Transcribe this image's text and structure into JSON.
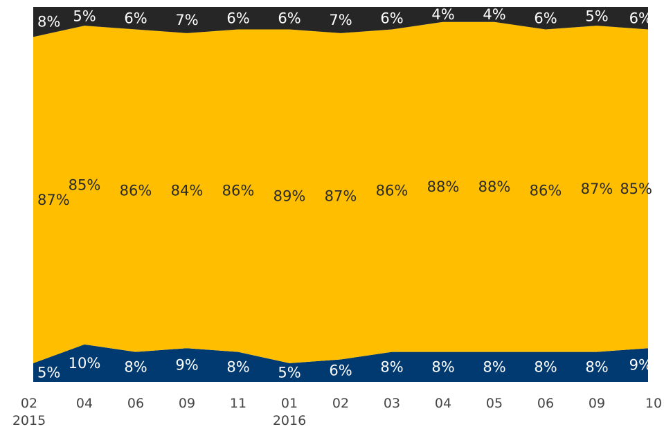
{
  "chart_data": {
    "type": "area",
    "stacked": "percent",
    "x_ticks": [
      "02",
      "04",
      "06",
      "09",
      "11",
      "01",
      "02",
      "03",
      "04",
      "05",
      "06",
      "09",
      "10"
    ],
    "year_labels": [
      {
        "index": 0,
        "label": "2015"
      },
      {
        "index": 5,
        "label": "2016"
      }
    ],
    "series": [
      {
        "color": "#003a70",
        "values": [
          5,
          10,
          8,
          9,
          8,
          5,
          6,
          8,
          8,
          8,
          8,
          8,
          9
        ],
        "labels": [
          "5%",
          "10%",
          "8%",
          "9%",
          "8%",
          "5%",
          "6%",
          "8%",
          "8%",
          "8%",
          "8%",
          "8%",
          "9%"
        ]
      },
      {
        "color": "#ffbf00",
        "values": [
          87,
          85,
          86,
          84,
          86,
          89,
          87,
          86,
          88,
          88,
          86,
          87,
          85
        ],
        "labels": [
          "87%",
          "85%",
          "86%",
          "84%",
          "86%",
          "89%",
          "87%",
          "86%",
          "88%",
          "88%",
          "86%",
          "87%",
          "85%"
        ]
      },
      {
        "color": "#262626",
        "values": [
          8,
          5,
          6,
          7,
          6,
          6,
          7,
          6,
          4,
          4,
          6,
          5,
          6
        ],
        "labels": [
          "8%",
          "5%",
          "6%",
          "7%",
          "6%",
          "6%",
          "7%",
          "6%",
          "4%",
          "4%",
          "6%",
          "5%",
          "6%"
        ]
      }
    ],
    "ylim": [
      0,
      100
    ],
    "grid": false,
    "legend": "none"
  }
}
